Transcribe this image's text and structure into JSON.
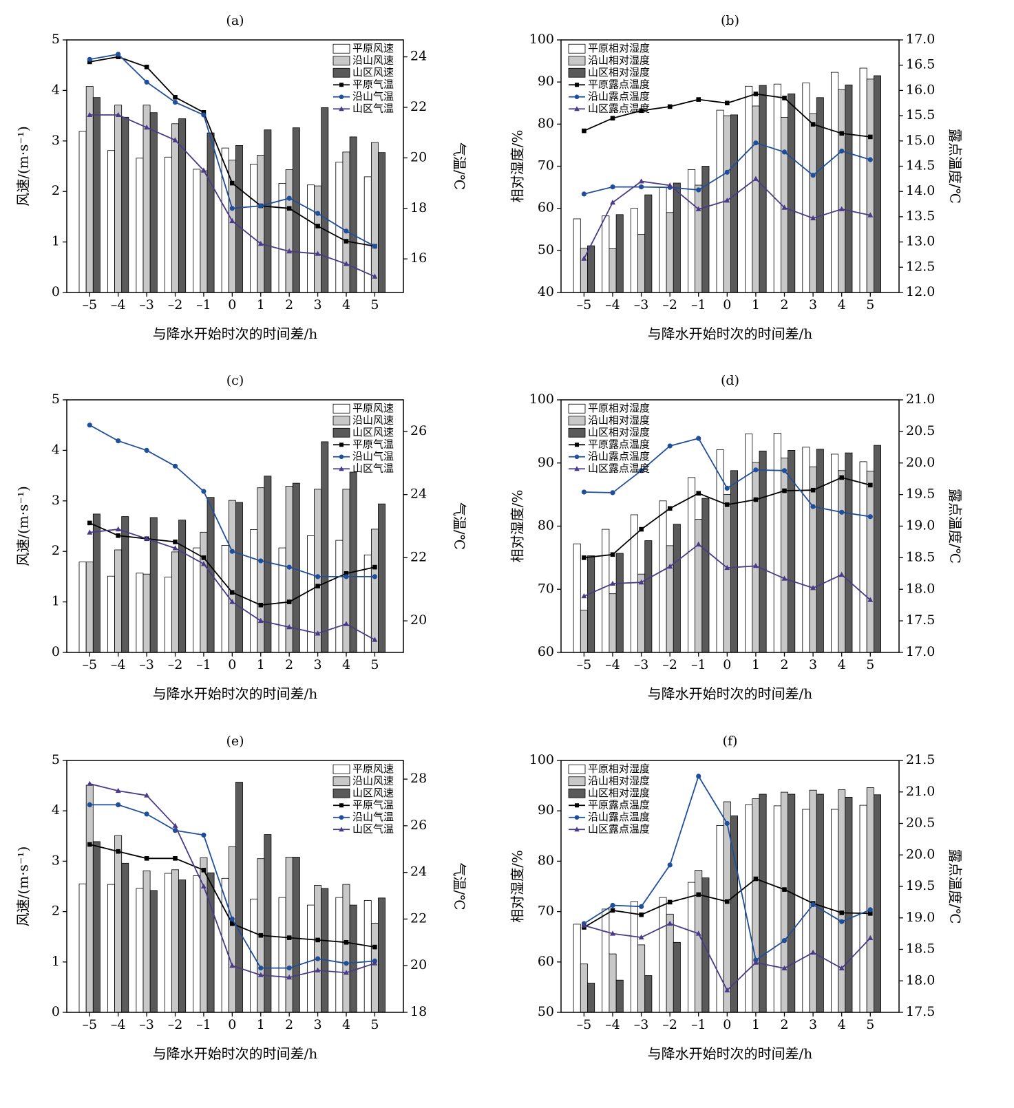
{
  "x_title": "与降水开始时次的时间差/h",
  "x_tick_labels": [
    "–5",
    "–4",
    "–3",
    "–2",
    "–1",
    "0",
    "1",
    "2",
    "3",
    "4",
    "5"
  ],
  "colors": {
    "bar_plain": "#ffffff",
    "bar_piedmont": "#c8c8c8",
    "bar_mountain": "#5a5a5a",
    "line_plain": "#000000",
    "line_piedmont": "#1f4e9a",
    "line_mountain": "#4b3a86"
  },
  "chart_data": [
    {
      "panel": "(a)",
      "type": "bar+line",
      "x": [
        -5,
        -4,
        -3,
        -2,
        -1,
        0,
        1,
        2,
        3,
        4,
        5
      ],
      "ylabel_left": "风速/(m·s⁻¹)",
      "ylabel_right": "气温/℃",
      "ylim_left": [
        0,
        5
      ],
      "ylim_right": [
        14.67,
        24.67
      ],
      "yticks_left": [
        "0",
        "1",
        "2",
        "3",
        "4",
        "5"
      ],
      "yticks_left_values": [
        0,
        1,
        2,
        3,
        4,
        5
      ],
      "yticks_right": [
        "16",
        "18",
        "20",
        "22",
        "24"
      ],
      "yticks_right_values": [
        16,
        18,
        20,
        22,
        24
      ],
      "bar_series": [
        {
          "name": "平原风速",
          "values": [
            3.19,
            2.81,
            2.66,
            2.68,
            2.44,
            2.86,
            2.54,
            2.16,
            2.13,
            2.58,
            2.29
          ]
        },
        {
          "name": "沿山风速",
          "values": [
            4.08,
            3.71,
            3.71,
            3.34,
            2.41,
            2.62,
            2.72,
            2.43,
            2.11,
            2.78,
            2.97
          ]
        },
        {
          "name": "山区风速",
          "values": [
            3.86,
            3.47,
            3.56,
            3.44,
            3.16,
            2.91,
            3.22,
            3.26,
            3.66,
            3.08,
            2.77
          ]
        }
      ],
      "line_series": [
        {
          "name": "平原气温",
          "values": [
            23.8,
            24.0,
            23.6,
            22.4,
            21.8,
            19.0,
            18.1,
            18.0,
            17.3,
            16.7,
            16.5
          ]
        },
        {
          "name": "沿山气温",
          "values": [
            23.9,
            24.1,
            23.0,
            22.2,
            21.7,
            18.0,
            18.1,
            18.4,
            17.8,
            17.1,
            16.5
          ]
        },
        {
          "name": "山区气温",
          "values": [
            21.7,
            21.7,
            21.2,
            20.7,
            19.5,
            17.5,
            16.6,
            16.3,
            16.2,
            15.8,
            15.3
          ]
        }
      ]
    },
    {
      "panel": "(b)",
      "type": "bar+line",
      "x": [
        -5,
        -4,
        -3,
        -2,
        -1,
        0,
        1,
        2,
        3,
        4,
        5
      ],
      "ylabel_left": "相对湿度/%",
      "ylabel_right": "露点温度/℃",
      "ylim_left": [
        40,
        100
      ],
      "ylim_right": [
        12,
        17
      ],
      "yticks_left": [
        "40",
        "50",
        "60",
        "70",
        "80",
        "90",
        "100"
      ],
      "yticks_left_values": [
        40,
        50,
        60,
        70,
        80,
        90,
        100
      ],
      "yticks_right": [
        "12.0",
        "12.5",
        "13.0",
        "13.5",
        "14.0",
        "14.5",
        "15.0",
        "15.5",
        "16.0",
        "16.5",
        "17.0"
      ],
      "yticks_right_values": [
        12.0,
        12.5,
        13.0,
        13.5,
        14.0,
        14.5,
        15.0,
        15.5,
        16.0,
        16.5,
        17.0
      ],
      "bar_series": [
        {
          "name": "平原相对湿度",
          "values": [
            57.5,
            58.2,
            60.0,
            65.0,
            69.2,
            83.3,
            89.0,
            89.5,
            89.8,
            92.3,
            93.3
          ]
        },
        {
          "name": "沿山相对湿度",
          "values": [
            50.5,
            50.4,
            53.8,
            59.0,
            65.5,
            82.0,
            84.3,
            81.6,
            82.5,
            88.2,
            90.7
          ]
        },
        {
          "name": "山区相对湿度",
          "values": [
            51.1,
            58.5,
            63.2,
            66.0,
            70.0,
            82.2,
            89.2,
            87.2,
            86.3,
            89.3,
            91.5
          ]
        }
      ],
      "line_series": [
        {
          "name": "平原露点温度",
          "values": [
            15.2,
            15.45,
            15.6,
            15.68,
            15.82,
            15.75,
            15.93,
            15.85,
            15.33,
            15.15,
            15.08
          ]
        },
        {
          "name": "沿山露点温度",
          "values": [
            13.95,
            14.09,
            14.09,
            14.08,
            14.03,
            14.38,
            14.96,
            14.78,
            14.32,
            14.8,
            14.63
          ]
        },
        {
          "name": "山区露点温度",
          "values": [
            12.67,
            13.78,
            14.2,
            14.12,
            13.65,
            13.82,
            14.25,
            13.68,
            13.47,
            13.65,
            13.53
          ]
        }
      ]
    },
    {
      "panel": "(c)",
      "type": "bar+line",
      "x": [
        -5,
        -4,
        -3,
        -2,
        -1,
        0,
        1,
        2,
        3,
        4,
        5
      ],
      "ylabel_left": "风速/(m·s⁻¹)",
      "ylabel_right": "气温/℃",
      "ylim_left": [
        0,
        5
      ],
      "ylim_right": [
        19.0,
        27.0
      ],
      "yticks_left": [
        "0",
        "1",
        "2",
        "3",
        "4",
        "5"
      ],
      "yticks_left_values": [
        0,
        1,
        2,
        3,
        4,
        5
      ],
      "yticks_right": [
        "20",
        "22",
        "24",
        "26"
      ],
      "yticks_right_values": [
        20,
        22,
        24,
        26
      ],
      "bar_series": [
        {
          "name": "平原风速",
          "values": [
            1.79,
            1.51,
            1.57,
            1.49,
            2.07,
            2.12,
            2.43,
            2.07,
            2.31,
            2.22,
            1.93
          ]
        },
        {
          "name": "沿山风速",
          "values": [
            1.79,
            2.03,
            1.55,
            1.99,
            2.38,
            3.01,
            3.26,
            3.29,
            3.23,
            3.23,
            2.44
          ]
        },
        {
          "name": "山区风速",
          "values": [
            2.74,
            2.69,
            2.67,
            2.62,
            3.07,
            2.97,
            3.49,
            3.35,
            4.17,
            3.57,
            2.94
          ]
        }
      ],
      "line_series": [
        {
          "name": "平原气温",
          "values": [
            23.1,
            22.7,
            22.6,
            22.5,
            22.0,
            20.9,
            20.5,
            20.6,
            21.1,
            21.5,
            21.7
          ]
        },
        {
          "name": "沿山气温",
          "values": [
            26.2,
            25.7,
            25.4,
            24.9,
            24.1,
            22.2,
            21.9,
            21.7,
            21.4,
            21.4,
            21.4
          ]
        },
        {
          "name": "山区气温",
          "values": [
            22.8,
            22.9,
            22.6,
            22.3,
            21.8,
            20.6,
            20.0,
            19.8,
            19.6,
            19.9,
            19.4
          ]
        }
      ]
    },
    {
      "panel": "(d)",
      "type": "bar+line",
      "x": [
        -5,
        -4,
        -3,
        -2,
        -1,
        0,
        1,
        2,
        3,
        4,
        5
      ],
      "ylabel_left": "相对湿度/%",
      "ylabel_right": "露点温度/℃",
      "ylim_left": [
        60,
        100
      ],
      "ylim_right": [
        17,
        21
      ],
      "yticks_left": [
        "60",
        "70",
        "80",
        "90",
        "100"
      ],
      "yticks_left_values": [
        60,
        70,
        80,
        90,
        100
      ],
      "yticks_right": [
        "17.0",
        "17.5",
        "18.0",
        "18.5",
        "19.0",
        "19.5",
        "20.0",
        "20.5",
        "21.0"
      ],
      "yticks_right_values": [
        17.0,
        17.5,
        18.0,
        18.5,
        19.0,
        19.5,
        20.0,
        20.5,
        21.0
      ],
      "bar_series": [
        {
          "name": "平原相对湿度",
          "values": [
            77.2,
            79.5,
            81.8,
            84.0,
            87.7,
            92.1,
            94.6,
            94.7,
            92.5,
            91.4,
            90.2
          ]
        },
        {
          "name": "沿山相对湿度",
          "values": [
            66.7,
            69.3,
            72.4,
            76.9,
            81.1,
            85.0,
            90.1,
            90.8,
            89.4,
            88.8,
            88.7
          ]
        },
        {
          "name": "山区相对湿度",
          "values": [
            75.3,
            75.7,
            77.7,
            80.3,
            84.4,
            88.8,
            91.9,
            92.0,
            92.2,
            91.6,
            92.8
          ]
        }
      ],
      "line_series": [
        {
          "name": "平原露点温度",
          "values": [
            18.5,
            18.55,
            18.95,
            19.28,
            19.52,
            19.34,
            19.42,
            19.56,
            19.57,
            19.77,
            19.65
          ]
        },
        {
          "name": "沿山露点温度",
          "values": [
            19.54,
            19.53,
            19.88,
            20.27,
            20.39,
            19.6,
            19.89,
            19.88,
            19.31,
            19.22,
            19.15
          ]
        },
        {
          "name": "山区露点温度",
          "values": [
            17.89,
            18.09,
            18.11,
            18.36,
            18.71,
            18.34,
            18.37,
            18.17,
            18.02,
            18.23,
            17.83
          ]
        }
      ]
    },
    {
      "panel": "(e)",
      "type": "bar+line",
      "x": [
        -5,
        -4,
        -3,
        -2,
        -1,
        0,
        1,
        2,
        3,
        4,
        5
      ],
      "ylabel_left": "风速/(m·s⁻¹)",
      "ylabel_right": "气温/℃",
      "ylim_left": [
        0,
        5
      ],
      "ylim_right": [
        18,
        28.8
      ],
      "yticks_left": [
        "0",
        "1",
        "2",
        "3",
        "4",
        "5"
      ],
      "yticks_left_values": [
        0,
        1,
        2,
        3,
        4,
        5
      ],
      "yticks_right": [
        "18",
        "20",
        "22",
        "24",
        "26",
        "28"
      ],
      "yticks_right_values": [
        18,
        20,
        22,
        24,
        26,
        28
      ],
      "bar_series": [
        {
          "name": "平原风速",
          "values": [
            2.55,
            2.54,
            2.46,
            2.76,
            2.71,
            2.66,
            2.25,
            2.28,
            2.13,
            2.28,
            2.22
          ]
        },
        {
          "name": "沿山风速",
          "values": [
            4.51,
            3.51,
            2.81,
            2.83,
            3.07,
            3.29,
            3.05,
            3.08,
            2.52,
            2.54,
            1.77
          ]
        },
        {
          "name": "山区风速",
          "values": [
            3.39,
            2.96,
            2.42,
            2.63,
            2.77,
            4.57,
            3.53,
            3.08,
            2.46,
            2.13,
            2.27
          ]
        }
      ],
      "line_series": [
        {
          "name": "平原气温",
          "values": [
            25.2,
            24.9,
            24.6,
            24.6,
            24.1,
            21.8,
            21.3,
            21.2,
            21.1,
            21.0,
            20.8
          ]
        },
        {
          "name": "沿山气温",
          "values": [
            26.9,
            26.9,
            26.5,
            25.8,
            25.6,
            22.0,
            19.9,
            19.9,
            20.3,
            20.1,
            20.2
          ]
        },
        {
          "name": "山区气温",
          "values": [
            27.8,
            27.5,
            27.3,
            26.0,
            23.4,
            20.0,
            19.6,
            19.5,
            19.8,
            19.7,
            20.1
          ]
        }
      ]
    },
    {
      "panel": "(f)",
      "type": "bar+line",
      "x": [
        -5,
        -4,
        -3,
        -2,
        -1,
        0,
        1,
        2,
        3,
        4,
        5
      ],
      "ylabel_left": "相对湿度/%",
      "ylabel_right": "露点温度/℃",
      "ylim_left": [
        50,
        100
      ],
      "ylim_right": [
        17.5,
        21.5
      ],
      "yticks_left": [
        "50",
        "60",
        "70",
        "80",
        "90",
        "100"
      ],
      "yticks_left_values": [
        50,
        60,
        70,
        80,
        90,
        100
      ],
      "yticks_right": [
        "17.5",
        "18.0",
        "18.5",
        "19.0",
        "19.5",
        "20.0",
        "20.5",
        "21.0",
        "21.5"
      ],
      "yticks_right_values": [
        17.5,
        18.0,
        18.5,
        19.0,
        19.5,
        20.0,
        20.5,
        21.0,
        21.5
      ],
      "bar_series": [
        {
          "name": "平原相对湿度",
          "values": [
            67.5,
            70.5,
            72.0,
            72.8,
            75.8,
            87.1,
            91.2,
            91.0,
            90.3,
            90.3,
            91.1
          ]
        },
        {
          "name": "沿山相对湿度",
          "values": [
            59.6,
            61.6,
            63.4,
            69.5,
            78.2,
            91.8,
            92.4,
            93.7,
            94.1,
            94.2,
            94.6
          ]
        },
        {
          "name": "山区相对湿度",
          "values": [
            55.8,
            56.4,
            57.3,
            63.9,
            76.7,
            89.0,
            93.3,
            93.3,
            93.3,
            92.7,
            93.2
          ]
        }
      ],
      "line_series": [
        {
          "name": "平原露点温度",
          "values": [
            18.85,
            19.12,
            19.05,
            19.25,
            19.37,
            19.26,
            19.62,
            19.45,
            19.23,
            19.08,
            19.07
          ]
        },
        {
          "name": "沿山露点温度",
          "values": [
            18.91,
            19.2,
            19.18,
            19.84,
            21.25,
            20.5,
            18.33,
            18.64,
            19.21,
            18.94,
            19.13
          ]
        },
        {
          "name": "山区露点温度",
          "values": [
            18.88,
            18.75,
            18.69,
            18.91,
            18.75,
            17.85,
            18.29,
            18.2,
            18.45,
            18.2,
            18.68
          ]
        }
      ]
    }
  ]
}
